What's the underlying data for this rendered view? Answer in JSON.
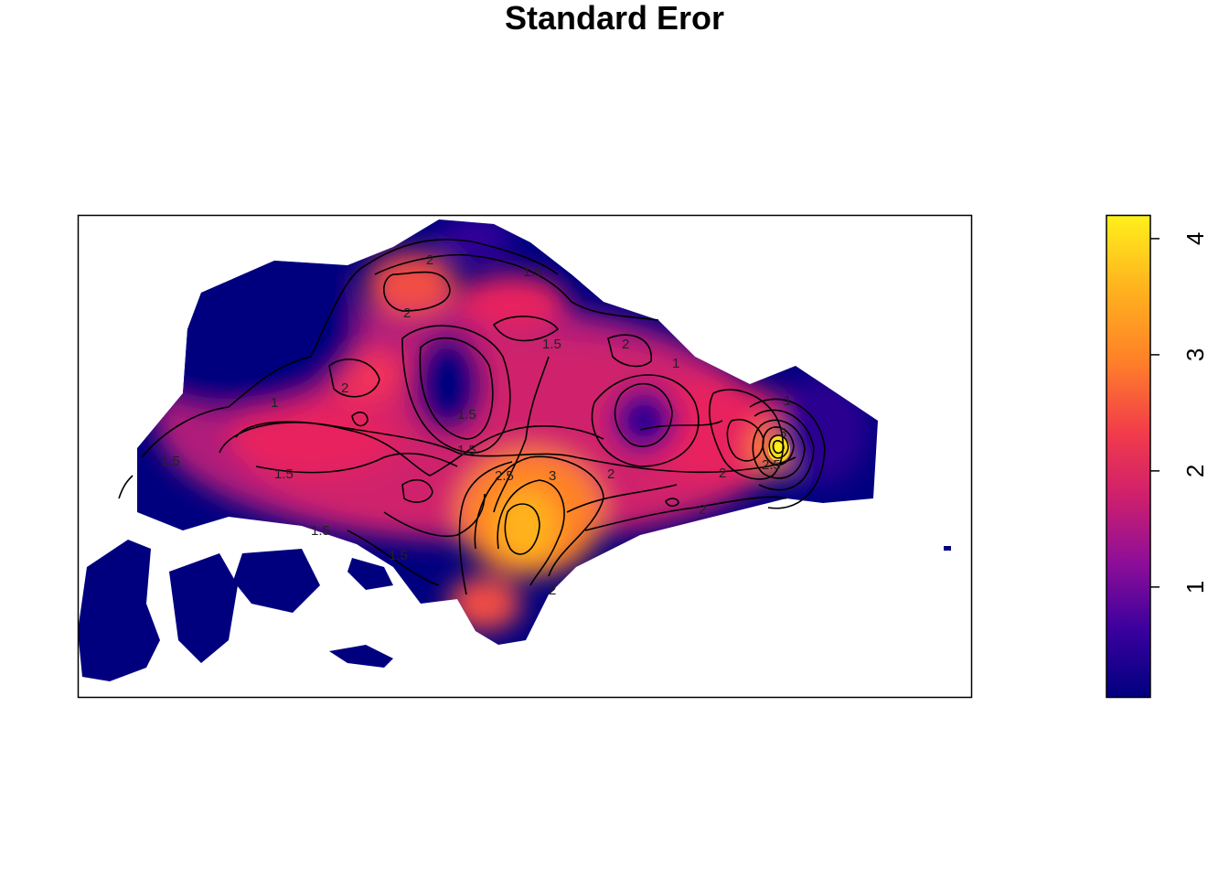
{
  "chart_data": {
    "type": "heatmap",
    "title": "Standard Eror",
    "legend": {
      "position": "right",
      "ticks": [
        "1",
        "2",
        "3",
        "4"
      ],
      "tick_values": [
        1,
        2,
        3,
        4
      ],
      "range": [
        0.05,
        4.2
      ],
      "colors": [
        "#00007F",
        "#3A009E",
        "#8E0E98",
        "#D0206C",
        "#F23C4A",
        "#FF8128",
        "#FFB31E",
        "#FFF01C"
      ]
    },
    "contour_labels": [
      "2",
      "1.5",
      "2",
      "1",
      "1.5",
      "2",
      "1.5",
      "2",
      "2",
      "1",
      "1.5",
      "1.5",
      "2.5",
      "3",
      "2",
      "2",
      "1",
      "3",
      "1.5",
      "1.5",
      "2.5",
      "1.5",
      "2"
    ],
    "grid": false
  }
}
